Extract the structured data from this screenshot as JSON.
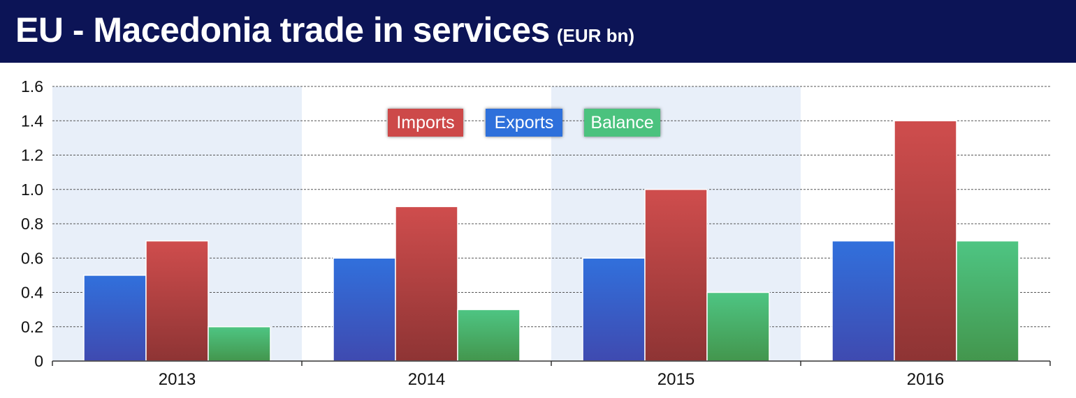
{
  "header": {
    "title": "EU - Macedonia trade in services",
    "unit": "(EUR bn)"
  },
  "colors": {
    "header_bg": "#0c1456",
    "exports": "#3071d8",
    "imports": "#cc4b4b",
    "balance": "#4cc07f",
    "band": "#e8eff9"
  },
  "chart_data": {
    "type": "bar",
    "title": "EU - Macedonia trade in services",
    "subtitle": "(EUR bn)",
    "xlabel": "",
    "ylabel": "",
    "categories": [
      "2013",
      "2014",
      "2015",
      "2016"
    ],
    "series": [
      {
        "name": "Exports",
        "values": [
          0.5,
          0.6,
          0.6,
          0.7
        ]
      },
      {
        "name": "Imports",
        "values": [
          0.7,
          0.9,
          1.0,
          1.4
        ]
      },
      {
        "name": "Balance",
        "values": [
          0.2,
          0.3,
          0.4,
          0.7
        ]
      }
    ],
    "ylim": [
      0,
      1.6
    ],
    "yticks": [
      "0",
      "0.2",
      "0.4",
      "0.6",
      "0.8",
      "1.0",
      "1.2",
      "1.4",
      "1.6"
    ],
    "grid": true,
    "legend_position": "top-center",
    "legend_order": [
      "Imports",
      "Exports",
      "Balance"
    ]
  }
}
